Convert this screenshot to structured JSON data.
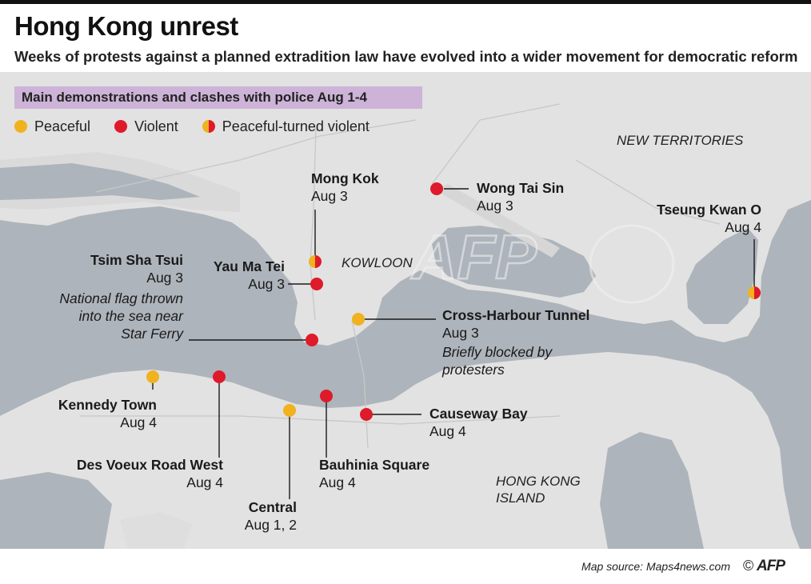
{
  "header": {
    "title": "Hong Kong unrest",
    "subtitle": "Weeks of protests against a planned extradition law have evolved into a wider movement for democratic reform"
  },
  "legend": {
    "title": "Main demonstrations and clashes with police Aug 1-4",
    "items": [
      {
        "label": "Peaceful",
        "color": "#f0b21e"
      },
      {
        "label": "Violent",
        "color": "#df1a2a"
      },
      {
        "label": "Peaceful-turned violent",
        "color": "#f0b21e/#df1a2a"
      }
    ]
  },
  "areas": {
    "new_territories": "NEW TERRITORIES",
    "kowloon": "KOWLOON",
    "hong_kong_island_1": "HONG KONG",
    "hong_kong_island_2": "ISLAND"
  },
  "places": [
    {
      "name": "Mong Kok",
      "date": "Aug 3",
      "type": "mixed"
    },
    {
      "name": "Wong Tai Sin",
      "date": "Aug 3",
      "type": "violent"
    },
    {
      "name": "Tseung Kwan O",
      "date": "Aug 4",
      "type": "mixed"
    },
    {
      "name": "Tsim Sha Tsui",
      "date": "Aug 3",
      "type": "violent",
      "note": [
        "National flag thrown",
        "into the sea near",
        "Star Ferry"
      ]
    },
    {
      "name": "Yau Ma Tei",
      "date": "Aug 3",
      "type": "violent"
    },
    {
      "name": "Cross-Harbour Tunnel",
      "date": "Aug 3",
      "type": "peaceful",
      "note": [
        "Briefly blocked by",
        "protesters"
      ]
    },
    {
      "name": "Kennedy Town",
      "date": "Aug 4",
      "type": "peaceful"
    },
    {
      "name": "Des Voeux Road West",
      "date": "Aug 4",
      "type": "violent"
    },
    {
      "name": "Central",
      "date": "Aug 1, 2",
      "type": "peaceful"
    },
    {
      "name": "Bauhinia Square",
      "date": "Aug 4",
      "type": "violent"
    },
    {
      "name": "Causeway Bay",
      "date": "Aug 4",
      "type": "violent"
    }
  ],
  "footer": {
    "source": "Map source: Maps4news.com",
    "copyright": "©",
    "agency": "AFP"
  },
  "colors": {
    "peaceful": "#f0b21e",
    "violent": "#df1a2a",
    "water": "#aeb4bb",
    "land": "#e3e3e3",
    "legend_bg": "#cdb3d8"
  }
}
